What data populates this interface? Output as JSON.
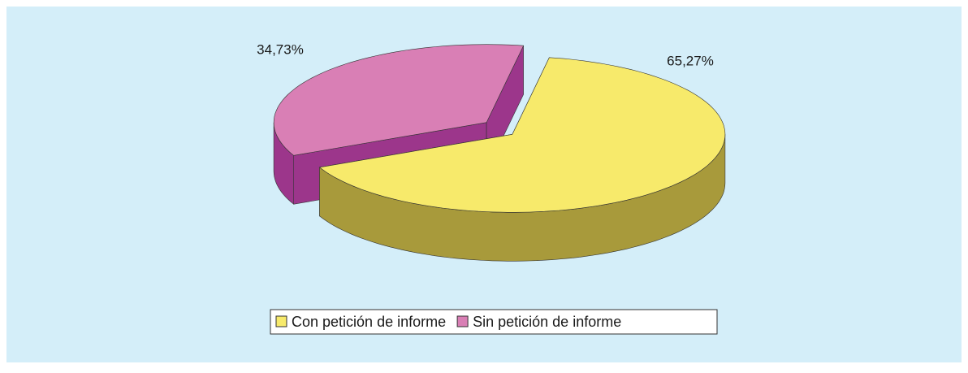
{
  "chart_data": {
    "type": "pie3d",
    "categories": [
      "Con petición de informe",
      "Sin petición de informe"
    ],
    "values": [
      65.27,
      34.73
    ],
    "value_labels": [
      "65,27%",
      "34,73%"
    ],
    "series": [
      {
        "name": "Con petición de informe",
        "color": "#f7ea6b"
      },
      {
        "name": "Sin petición de informe",
        "color": "#d97fb5"
      }
    ],
    "side_colors": [
      "#a89a3b",
      "#9c368b"
    ],
    "legend": "bottom"
  }
}
